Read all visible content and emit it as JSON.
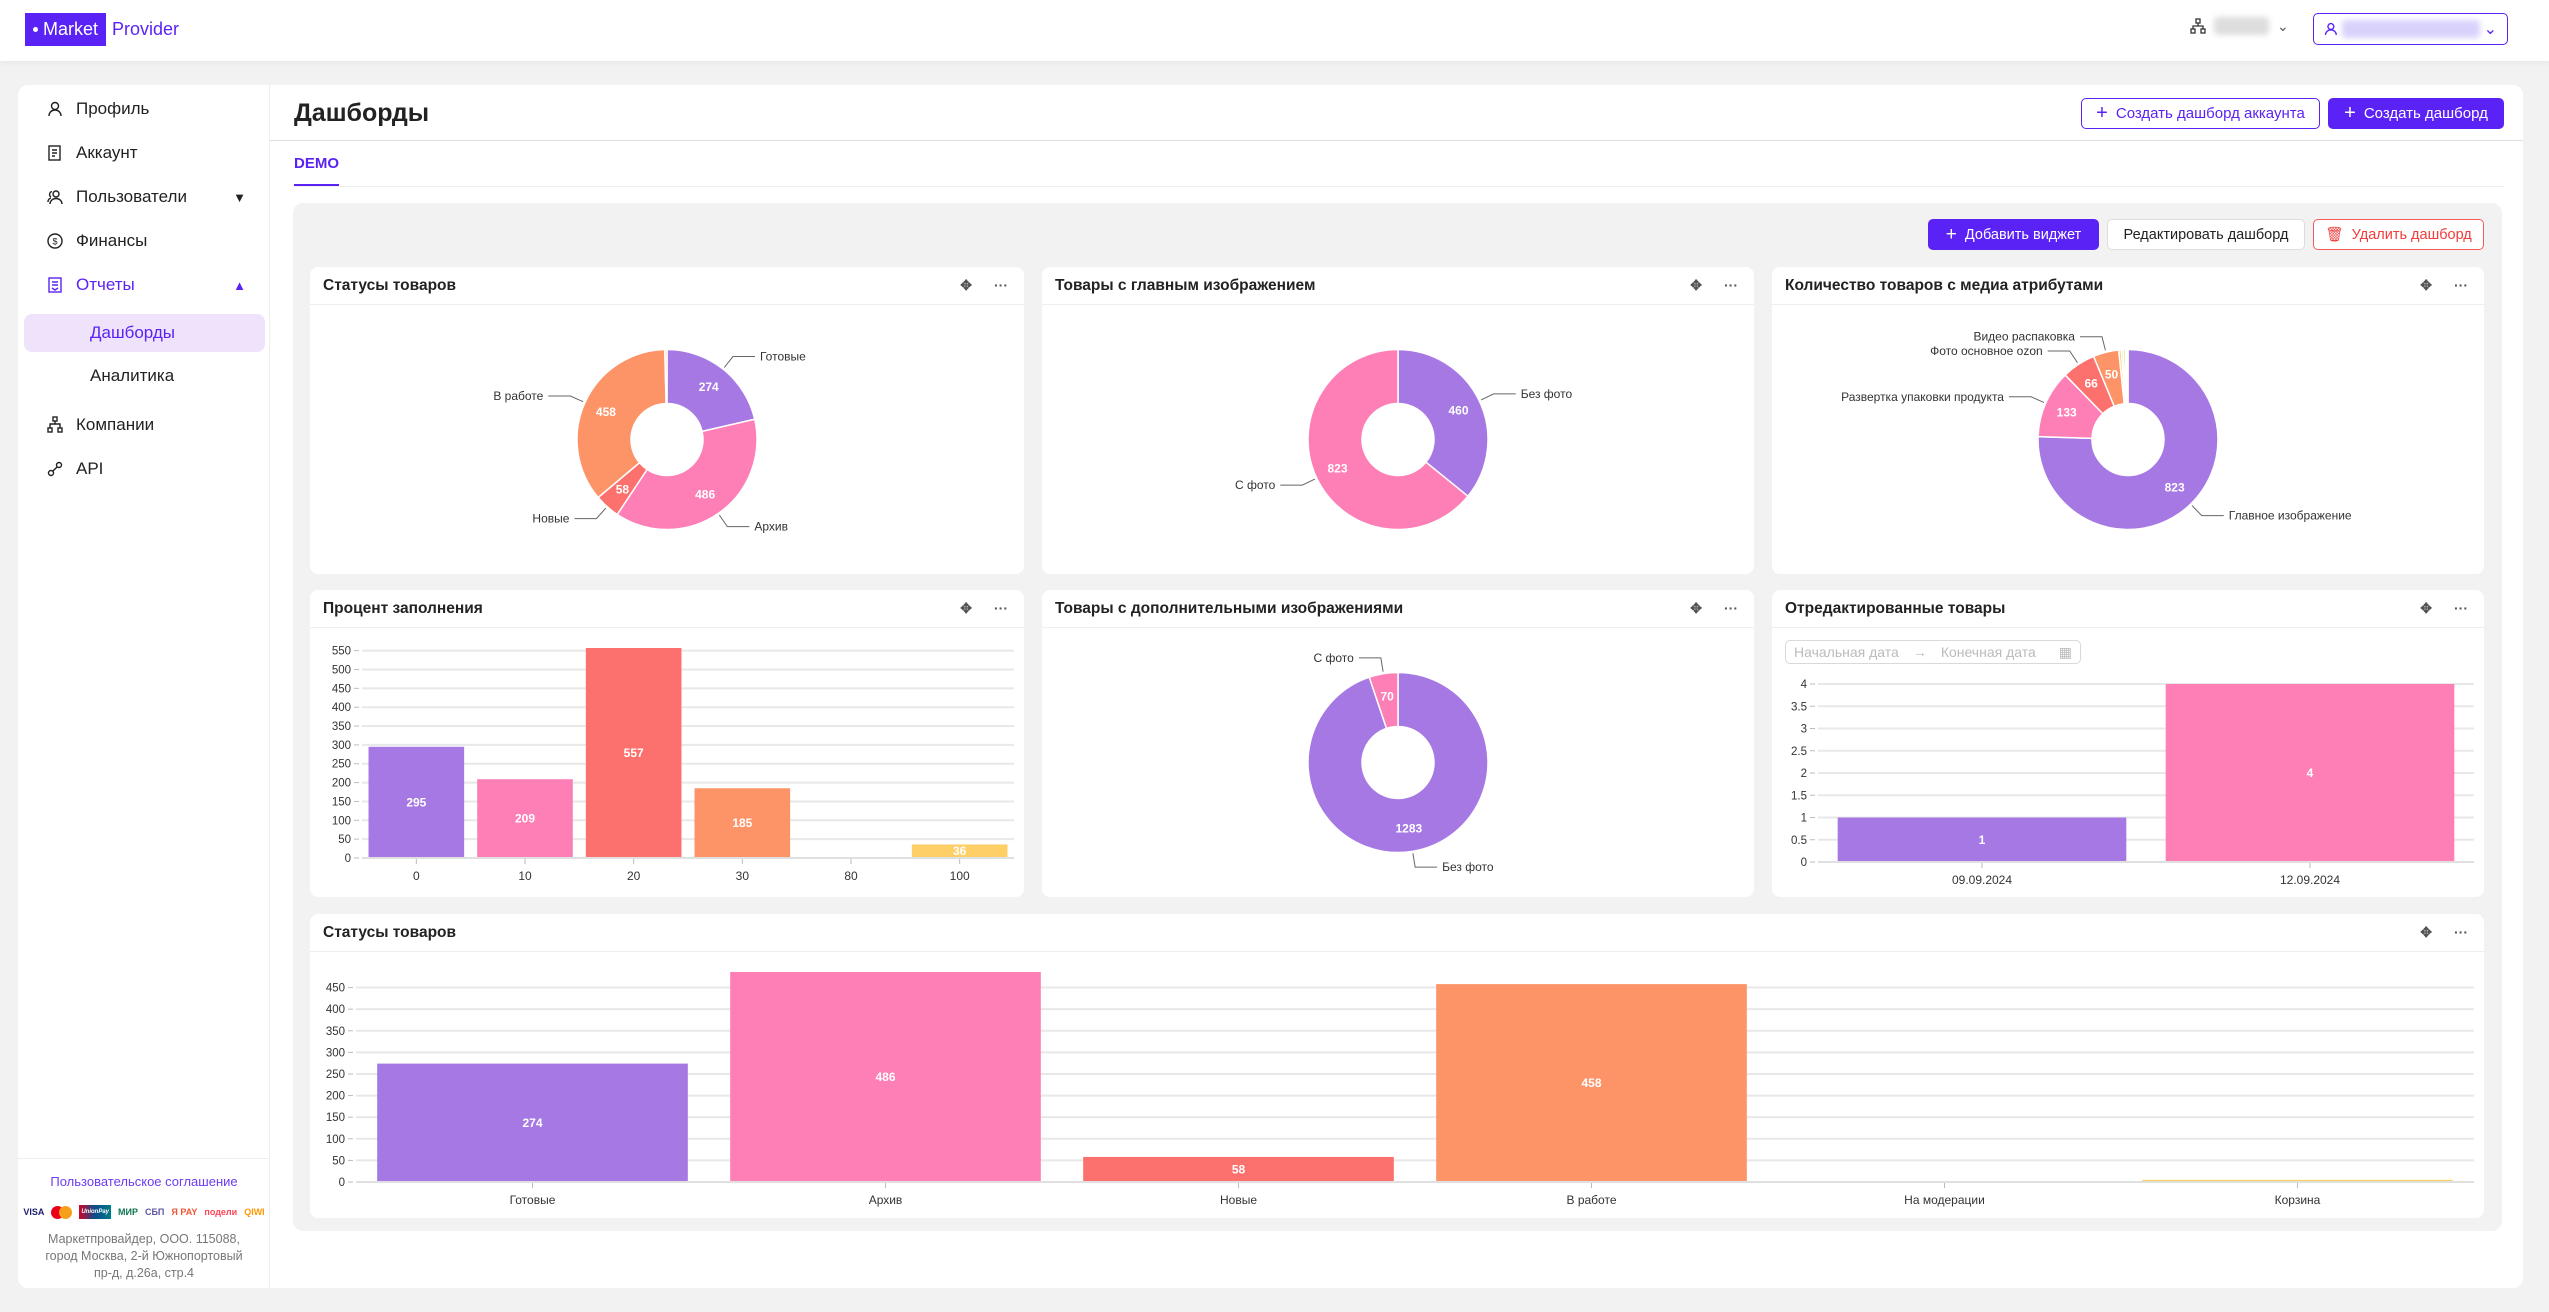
{
  "header": {
    "logo_left": "Market",
    "logo_right": "Provider"
  },
  "sidebar": {
    "items": [
      {
        "label": "Профиль",
        "icon": "user-icon"
      },
      {
        "label": "Аккаунт",
        "icon": "document-icon"
      },
      {
        "label": "Пользователи",
        "icon": "users-icon"
      },
      {
        "label": "Финансы",
        "icon": "dollar-icon"
      },
      {
        "label": "Отчеты",
        "icon": "report-icon"
      },
      {
        "label": "Компании",
        "icon": "org-icon"
      },
      {
        "label": "API",
        "icon": "link-icon"
      }
    ],
    "sub": [
      "Дашборды",
      "Аналитика"
    ],
    "agreement": "Пользовательское соглашение",
    "payments": [
      "VISA",
      "mastercard",
      "UnionPay",
      "МИР",
      "СБП",
      "Я PAY",
      "подели",
      "QIWI"
    ],
    "address": "Маркетпровайдер, ООО. 115088, город Москва, 2-й Южнопортовый пр-д, д.26а, стр.4"
  },
  "page": {
    "title": "Дашборды",
    "create_account_dashboard": "Создать дашборд аккаунта",
    "create_dashboard": "Создать дашборд",
    "tab": "DEMO"
  },
  "toolbar": {
    "add_widget": "Добавить виджет",
    "edit": "Редактировать дашборд",
    "delete": "Удалить дашборд"
  },
  "colors": {
    "accent": "#5a22f5",
    "purple": "#a678e3",
    "pink": "#fd7fb6",
    "red": "#fc716d",
    "orange": "#fc9468",
    "yellow": "#fecf67"
  },
  "date_range": {
    "start_placeholder": "Начальная дата",
    "end_placeholder": "Конечная дата"
  },
  "chart_data": [
    {
      "id": "w1",
      "type": "pie",
      "title": "Статусы товаров",
      "slices": [
        {
          "name": "Готовые",
          "value": 274,
          "color": "#a678e3",
          "label": true
        },
        {
          "name": "Архив",
          "value": 486,
          "color": "#fd7fb6",
          "label": true
        },
        {
          "name": "Новые",
          "value": 58,
          "color": "#fc716d",
          "label": true
        },
        {
          "name": "В работе",
          "value": 458,
          "color": "#fc9468",
          "label": true
        },
        {
          "name": "На модерации",
          "value": 0,
          "color": "#a0d468",
          "label": false
        },
        {
          "name": "Корзина",
          "value": 5,
          "color": "#fecf67",
          "label": false
        }
      ]
    },
    {
      "id": "w2",
      "type": "pie",
      "title": "Товары с главным изображением",
      "slices": [
        {
          "name": "Без фото",
          "value": 460,
          "color": "#a678e3",
          "label": true
        },
        {
          "name": "С фото",
          "value": 823,
          "color": "#fd7fb6",
          "label": true
        }
      ]
    },
    {
      "id": "w3",
      "type": "pie",
      "title": "Количество товаров с медиа атрибутами",
      "slices": [
        {
          "name": "Главное изображение",
          "value": 823,
          "color": "#a678e3",
          "label": true
        },
        {
          "name": "Развертка упаковки продукта",
          "value": 133,
          "color": "#fd7fb6",
          "label": true
        },
        {
          "name": "Фото основное ozon",
          "value": 66,
          "color": "#fc716d",
          "label": true
        },
        {
          "name": "Видео распаковка",
          "value": 50,
          "color": "#fc9468",
          "label": true
        },
        {
          "name": null,
          "value": 5,
          "color": "#fecf67",
          "label": false
        },
        {
          "name": null,
          "value": 4,
          "color": "#e6e86a",
          "label": false
        },
        {
          "name": null,
          "value": 4,
          "color": "#a0d468",
          "label": false
        },
        {
          "name": null,
          "value": 3,
          "color": "#6cc96c",
          "label": false
        },
        {
          "name": null,
          "value": 2,
          "color": "#5cb8d6",
          "label": false
        }
      ]
    },
    {
      "id": "w4",
      "type": "bar",
      "title": "Процент заполнения",
      "categories": [
        "0",
        "10",
        "20",
        "30",
        "80",
        "100"
      ],
      "values": [
        295,
        209,
        557,
        185,
        0,
        36
      ],
      "colors": [
        "#a678e3",
        "#fd7fb6",
        "#fc716d",
        "#fc9468",
        "#a0d468",
        "#fecf67"
      ],
      "ylim": [
        0,
        557
      ],
      "yticks": [
        "0",
        "50",
        "100",
        "150",
        "200",
        "250",
        "300",
        "350",
        "400",
        "450",
        "500",
        "550"
      ]
    },
    {
      "id": "w5",
      "type": "pie",
      "title": "Товары с дополнительными изображениями",
      "slices": [
        {
          "name": "Без фото",
          "value": 1283,
          "color": "#a678e3",
          "label": true
        },
        {
          "name": "С фото",
          "value": 70,
          "color": "#fd7fb6",
          "label": true
        }
      ]
    },
    {
      "id": "w6",
      "type": "bar",
      "title": "Отредактированные товары",
      "categories": [
        "09.09.2024",
        "12.09.2024"
      ],
      "values": [
        1,
        4
      ],
      "colors": [
        "#a678e3",
        "#fd7fb6"
      ],
      "ylim": [
        0,
        4
      ],
      "yticks": [
        "0",
        "0.5",
        "1",
        "1.5",
        "2",
        "2.5",
        "3",
        "3.5",
        "4"
      ]
    },
    {
      "id": "w7",
      "type": "bar",
      "title": "Статусы товаров",
      "categories": [
        "Готовые",
        "Архив",
        "Новые",
        "В работе",
        "На модерации",
        "Корзина"
      ],
      "values": [
        274,
        486,
        58,
        458,
        0,
        5
      ],
      "colors": [
        "#a678e3",
        "#fd7fb6",
        "#fc716d",
        "#fc9468",
        "#a0d468",
        "#fecf67"
      ],
      "ylim": [
        0,
        486
      ],
      "yticks": [
        "0",
        "50",
        "100",
        "150",
        "200",
        "250",
        "300",
        "350",
        "400",
        "450"
      ]
    }
  ]
}
